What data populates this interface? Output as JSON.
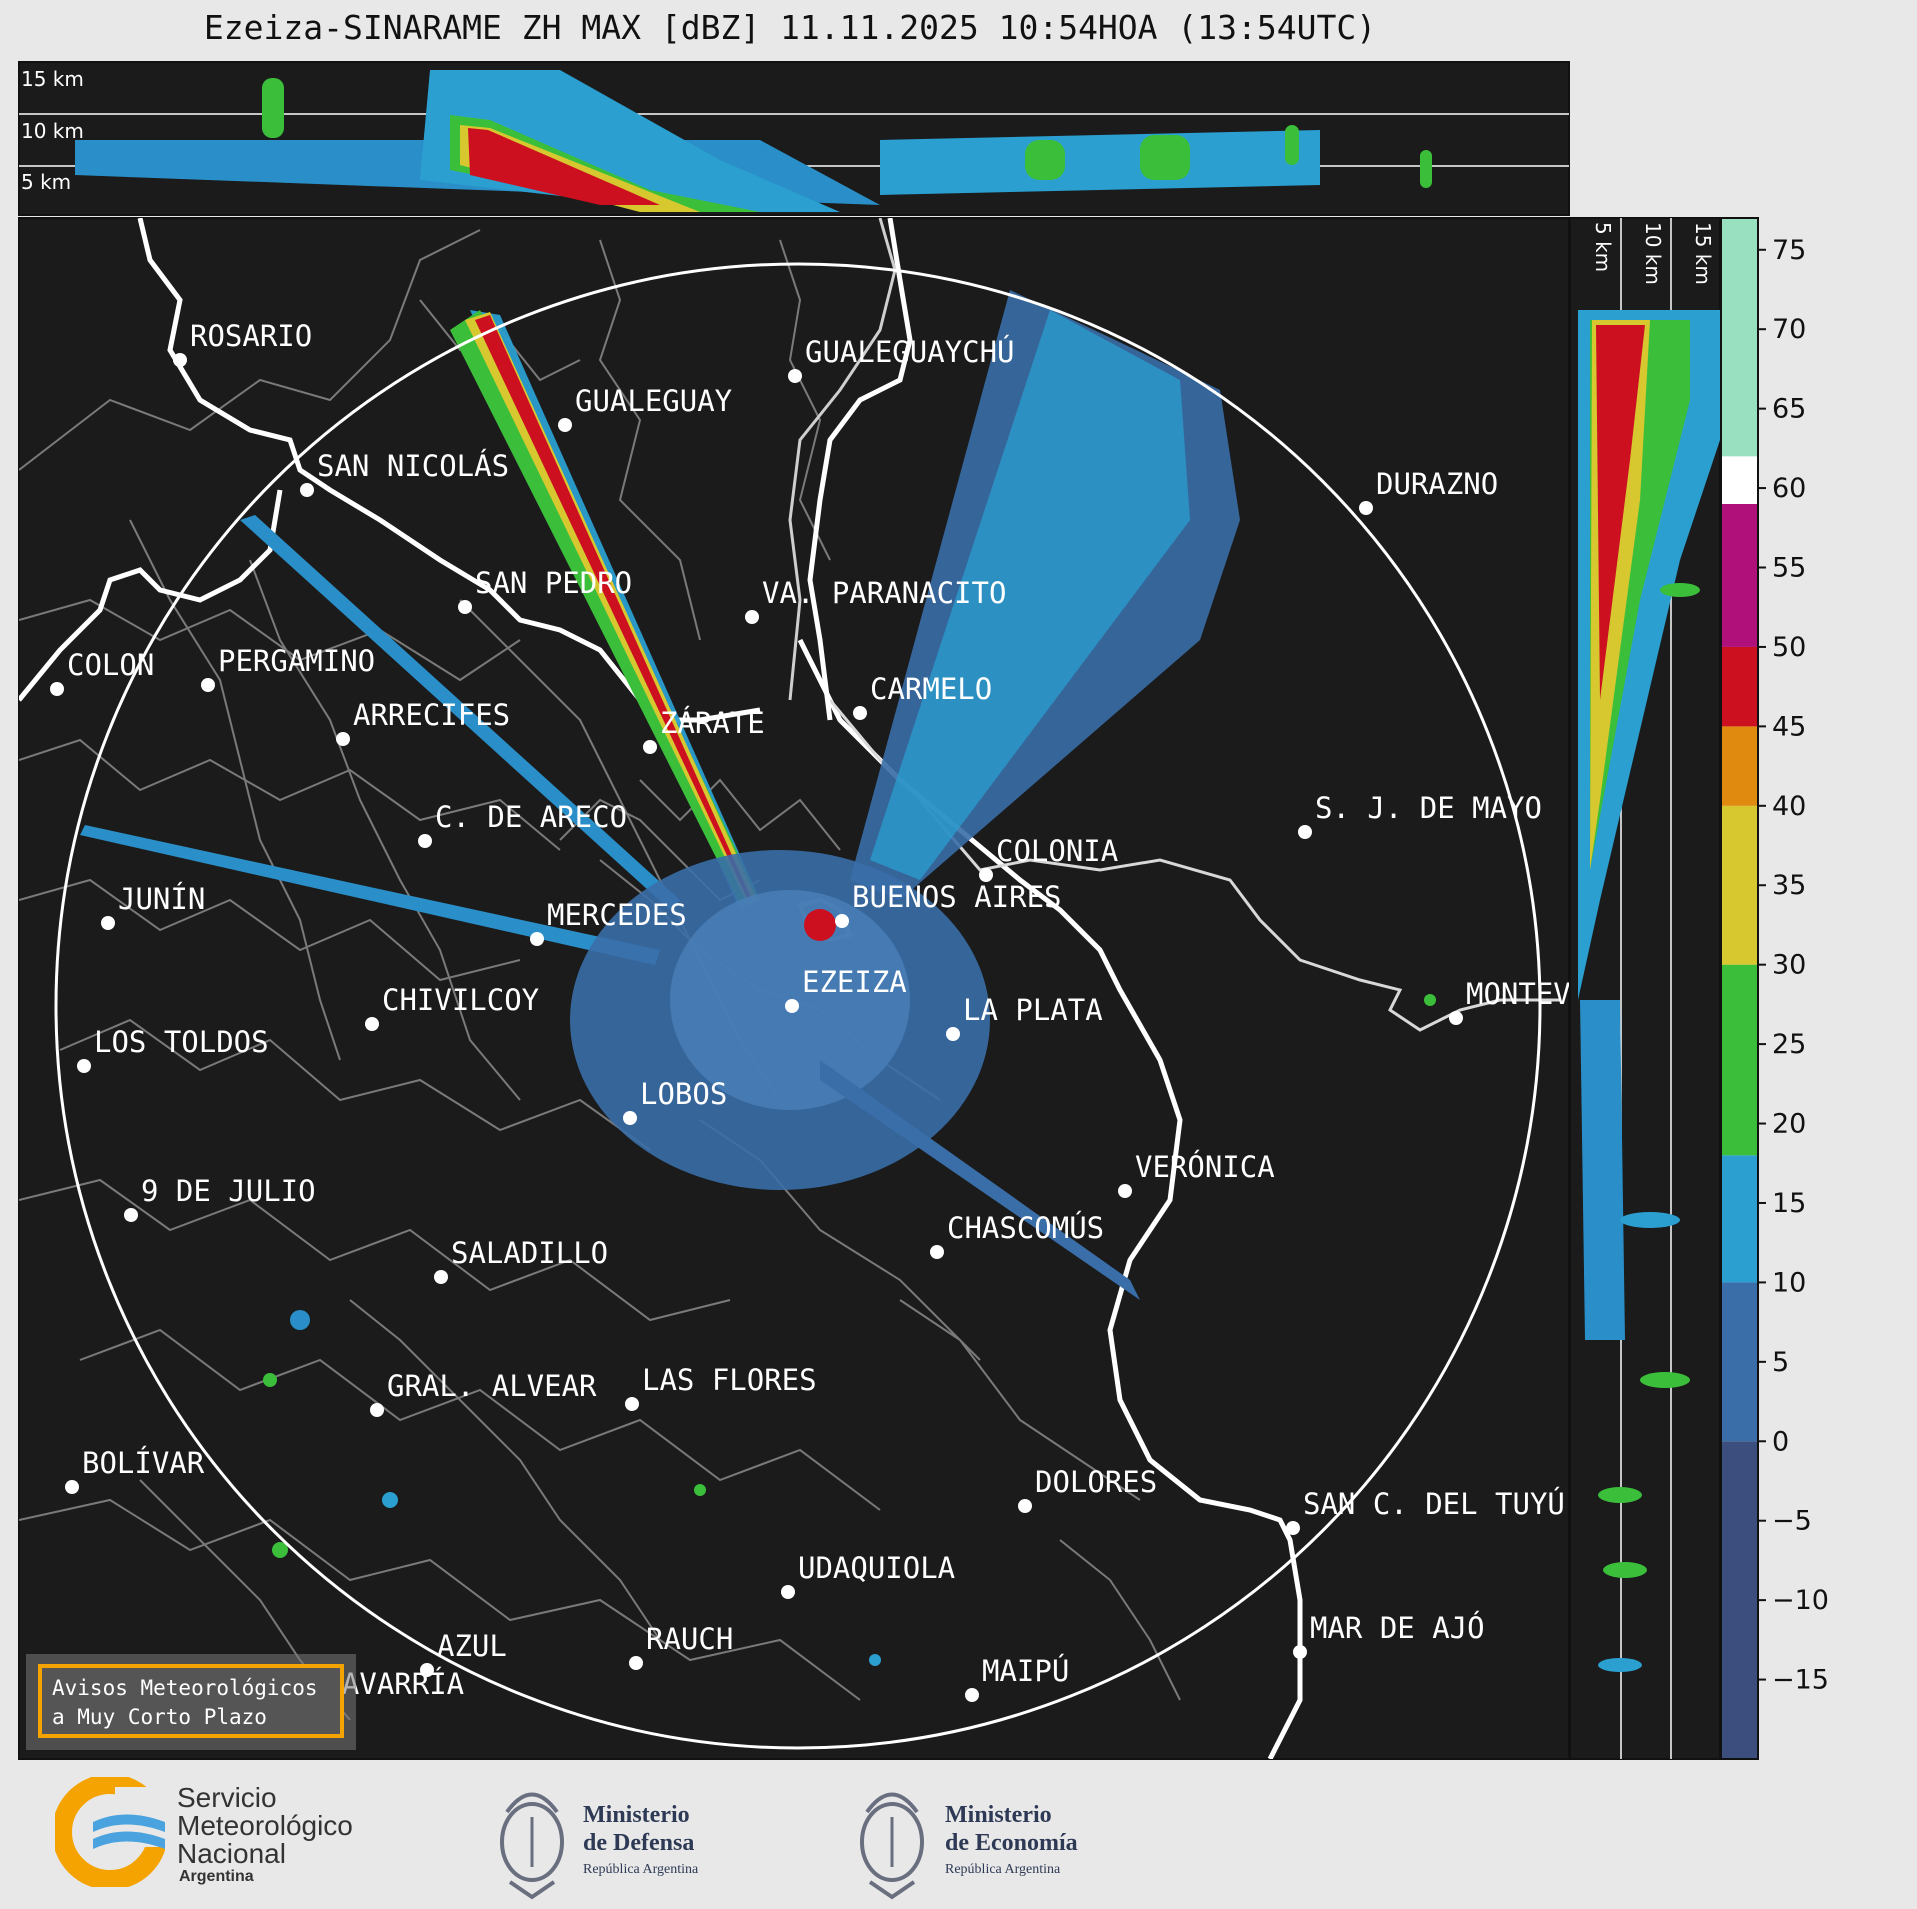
{
  "title": "Ezeiza-SINARAME ZH MAX [dBZ] 11.11.2025 10:54HOA (13:54UTC)",
  "top_panel": {
    "altitude_labels": [
      "15 km",
      "10 km",
      "5 km"
    ]
  },
  "side_panel": {
    "altitude_labels": [
      "5 km",
      "10 km",
      "15 km"
    ]
  },
  "colorbar": {
    "unit": "dBZ",
    "ticks": [
      "75",
      "70",
      "65",
      "60",
      "55",
      "50",
      "45",
      "40",
      "35",
      "30",
      "25",
      "20",
      "15",
      "10",
      "5",
      "0",
      "−5",
      "−10",
      "−15"
    ],
    "range": [
      -20,
      77
    ],
    "stops": [
      {
        "from": -20,
        "to": 0,
        "color": "#3b4e7e"
      },
      {
        "from": 0,
        "to": 10,
        "color": "#3a6ea8"
      },
      {
        "from": 10,
        "to": 18,
        "color": "#2a9fd0"
      },
      {
        "from": 18,
        "to": 30,
        "color": "#3bbf3b"
      },
      {
        "from": 30,
        "to": 40,
        "color": "#d8c830"
      },
      {
        "from": 40,
        "to": 45,
        "color": "#e08a10"
      },
      {
        "from": 45,
        "to": 50,
        "color": "#cc1020"
      },
      {
        "from": 50,
        "to": 59,
        "color": "#b0107a"
      },
      {
        "from": 59,
        "to": 62,
        "color": "#ffffff"
      },
      {
        "from": 62,
        "to": 77,
        "color": "#98e0c0"
      }
    ]
  },
  "cities": [
    {
      "name": "ROSARIO"
    },
    {
      "name": "GUALEGUAYCHÚ"
    },
    {
      "name": "GUALEGUAY"
    },
    {
      "name": "SAN NICOLÁS"
    },
    {
      "name": "DURAZNO"
    },
    {
      "name": "SAN PEDRO"
    },
    {
      "name": "VA. PARANACITO"
    },
    {
      "name": "COLON"
    },
    {
      "name": "PERGAMINO"
    },
    {
      "name": "CARMELO"
    },
    {
      "name": "ARRECIFES"
    },
    {
      "name": "ZÁRATE"
    },
    {
      "name": "S. J. DE MAYO"
    },
    {
      "name": "C. DE ARECO"
    },
    {
      "name": "COLONIA"
    },
    {
      "name": "JUNÍN"
    },
    {
      "name": "BUENOS AIRES"
    },
    {
      "name": "MERCEDES"
    },
    {
      "name": "EZEIZA"
    },
    {
      "name": "MONTEVIDEO"
    },
    {
      "name": "CHIVILCOY"
    },
    {
      "name": "LA PLATA"
    },
    {
      "name": "LOS TOLDOS"
    },
    {
      "name": "LOBOS"
    },
    {
      "name": "VERÓNICA"
    },
    {
      "name": "9 DE JULIO"
    },
    {
      "name": "CHASCOMÚS"
    },
    {
      "name": "SALADILLO"
    },
    {
      "name": "GRAL. ALVEAR"
    },
    {
      "name": "LAS FLORES"
    },
    {
      "name": "BOLÍVAR"
    },
    {
      "name": "DOLORES"
    },
    {
      "name": "SAN C. DEL TUYÚ"
    },
    {
      "name": "UDAQUIOLA"
    },
    {
      "name": "AZUL"
    },
    {
      "name": "OLAVARRÍA"
    },
    {
      "name": "RAUCH"
    },
    {
      "name": "MAIPÚ"
    },
    {
      "name": "MAR DE AJÓ"
    }
  ],
  "badge": {
    "line1": "Avisos Meteorológicos",
    "line2": "a Muy Corto Plazo"
  },
  "footer": {
    "smn": {
      "line1": "Servicio",
      "line2": "Meteorológico",
      "line3": "Nacional",
      "line4": "Argentina"
    },
    "defensa": {
      "line1": "Ministerio",
      "line2": "de Defensa",
      "line3": "República Argentina"
    },
    "economia": {
      "line1": "Ministerio",
      "line2": "de Economía",
      "line3": "República Argentina"
    }
  }
}
